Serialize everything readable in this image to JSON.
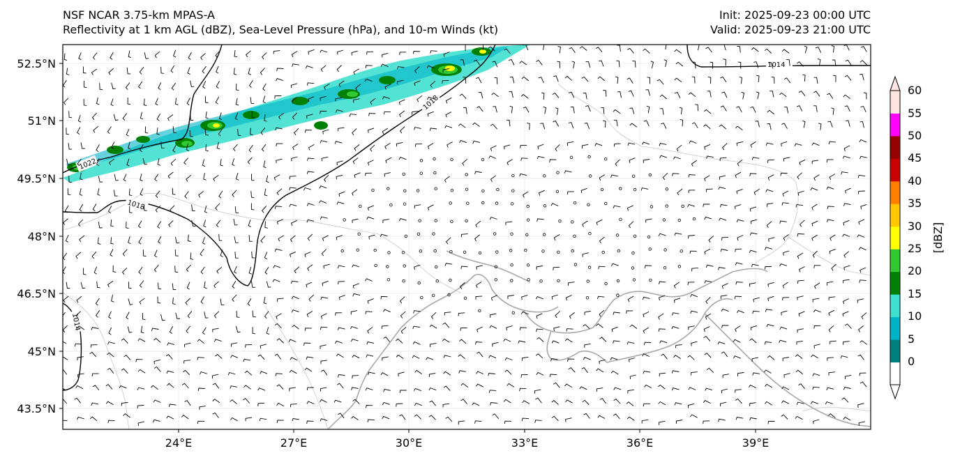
{
  "header": {
    "model": "NSF NCAR 3.75-km MPAS-A",
    "fields": "Reflectivity at 1 km AGL (dBZ), Sea-Level Pressure (hPa), and 10-m Winds (kt)",
    "init": "Init: 2025-09-23 00:00 UTC",
    "valid": "Valid: 2025-09-23 21:00 UTC"
  },
  "map": {
    "lat_labels": [
      "52.5°N",
      "51°N",
      "49.5°N",
      "48°N",
      "46.5°N",
      "45°N",
      "43.5°N"
    ],
    "lon_labels": [
      "24°E",
      "27°E",
      "30°E",
      "33°E",
      "36°E",
      "39°E"
    ],
    "isobar_labels": [
      "1014",
      "1018",
      "1022",
      "1018",
      "1014"
    ]
  },
  "colorbar": {
    "label": "[dBZ]",
    "ticks": [
      "0",
      "5",
      "10",
      "15",
      "20",
      "25",
      "30",
      "35",
      "40",
      "45",
      "50",
      "55",
      "60"
    ],
    "colors": [
      "#007f7f",
      "#00b4c8",
      "#40e0d0",
      "#008000",
      "#32c832",
      "#ffff00",
      "#ffc800",
      "#ff8000",
      "#c80000",
      "#960000",
      "#ff00ff",
      "#ffe4e1"
    ]
  }
}
